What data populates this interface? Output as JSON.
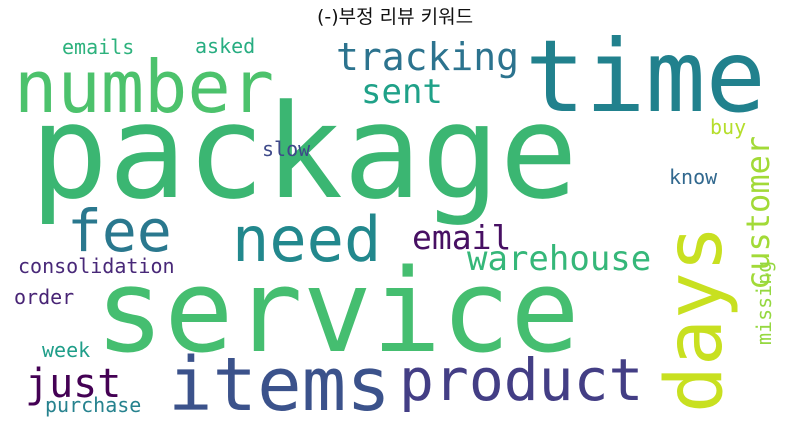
{
  "title": "(-)부정 리뷰 키워드",
  "words": [
    {
      "key": "package",
      "text": "package",
      "color": "#3bb672"
    },
    {
      "key": "service",
      "text": "service",
      "color": "#45be70"
    },
    {
      "key": "time",
      "text": "time",
      "color": "#21818d"
    },
    {
      "key": "number",
      "text": "number",
      "color": "#4cc26c"
    },
    {
      "key": "items",
      "text": "items",
      "color": "#3b528b"
    },
    {
      "key": "product",
      "text": "product",
      "color": "#433e85"
    },
    {
      "key": "need",
      "text": "need",
      "color": "#22888d"
    },
    {
      "key": "days",
      "text": "days",
      "color": "#c8e020"
    },
    {
      "key": "fee",
      "text": "fee",
      "color": "#2a788e"
    },
    {
      "key": "tracking",
      "text": "tracking",
      "color": "#2c738e"
    },
    {
      "key": "warehouse",
      "text": "warehouse",
      "color": "#35b779"
    },
    {
      "key": "customer",
      "text": "customer",
      "color": "#a2da37"
    },
    {
      "key": "email",
      "text": "email",
      "color": "#471063"
    },
    {
      "key": "sent",
      "text": "sent",
      "color": "#1fa188"
    },
    {
      "key": "just",
      "text": "just",
      "color": "#440154"
    },
    {
      "key": "consolidation",
      "text": "consolidation",
      "color": "#482878"
    },
    {
      "key": "emails",
      "text": "emails",
      "color": "#2db27d"
    },
    {
      "key": "asked",
      "text": "asked",
      "color": "#27ad81"
    },
    {
      "key": "slow",
      "text": "slow",
      "color": "#3e4989"
    },
    {
      "key": "buy",
      "text": "buy",
      "color": "#b5de2b"
    },
    {
      "key": "know",
      "text": "know",
      "color": "#31688e"
    },
    {
      "key": "order",
      "text": "order",
      "color": "#482475"
    },
    {
      "key": "week",
      "text": "week",
      "color": "#1f9e89"
    },
    {
      "key": "purchase",
      "text": "purchase",
      "color": "#26828e"
    },
    {
      "key": "missing",
      "text": "missing",
      "color": "#95d840"
    }
  ]
}
